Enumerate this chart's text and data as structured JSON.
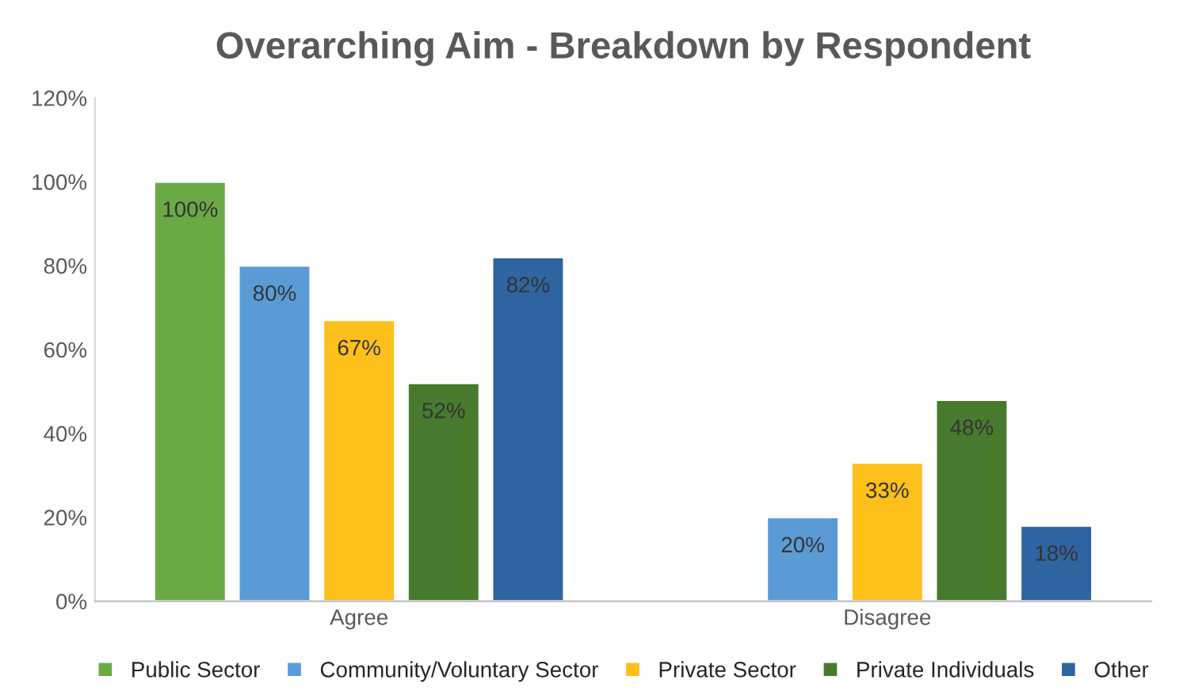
{
  "chart_data": {
    "type": "bar",
    "title": "Overarching Aim - Breakdown by Respondent",
    "categories": [
      "Agree",
      "Disagree"
    ],
    "series": [
      {
        "name": "Public Sector",
        "color": "#6aaa45",
        "values": [
          100,
          null
        ],
        "value_labels": [
          "100%",
          null
        ]
      },
      {
        "name": "Community/Voluntary Sector",
        "color": "#5b9bd5",
        "values": [
          80,
          20
        ],
        "value_labels": [
          "80%",
          "20%"
        ]
      },
      {
        "name": "Private Sector",
        "color": "#fdbf1a",
        "values": [
          67,
          33
        ],
        "value_labels": [
          "67%",
          "33%"
        ]
      },
      {
        "name": "Private Individuals",
        "color": "#487a2d",
        "values": [
          52,
          48
        ],
        "value_labels": [
          "52%",
          "48%"
        ]
      },
      {
        "name": "Other",
        "color": "#2e64a0",
        "values": [
          82,
          18
        ],
        "value_labels": [
          "82%",
          "18%"
        ]
      }
    ],
    "ylim": [
      0,
      120
    ],
    "yticks": [
      {
        "value": 0,
        "label": "0%"
      },
      {
        "value": 20,
        "label": "20%"
      },
      {
        "value": 40,
        "label": "40%"
      },
      {
        "value": 60,
        "label": "60%"
      },
      {
        "value": 80,
        "label": "80%"
      },
      {
        "value": 100,
        "label": "100%"
      },
      {
        "value": 120,
        "label": "120%"
      }
    ],
    "legend": "bottom",
    "grid": false
  }
}
